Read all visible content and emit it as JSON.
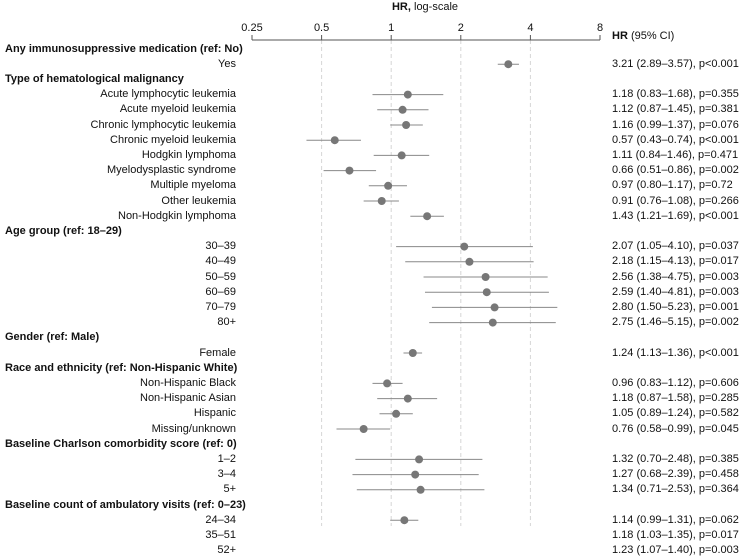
{
  "chart_data": {
    "type": "forest",
    "axis_title_bold": "HR,",
    "axis_title_rest": " log-scale",
    "scale": "log2",
    "xlim": [
      0.25,
      8
    ],
    "ticks": [
      "0.25",
      "0.5",
      "1",
      "2",
      "4",
      "8"
    ],
    "tick_values": [
      0.25,
      0.5,
      1,
      2,
      4,
      8
    ],
    "hr_column_bold": "HR",
    "hr_column_rest": " (95% CI)",
    "rows": [
      {
        "label": "Any immunosuppressive medication (ref: No)",
        "header": true
      },
      {
        "label": "Yes",
        "hr": 3.21,
        "lo": 2.89,
        "hi": 3.57,
        "text": "3.21 (2.89–3.57), p<0.001"
      },
      {
        "label": "Type of hematological malignancy",
        "header": true
      },
      {
        "label": "Acute lymphocytic leukemia",
        "hr": 1.18,
        "lo": 0.83,
        "hi": 1.68,
        "text": "1.18 (0.83–1.68), p=0.355"
      },
      {
        "label": "Acute myeloid leukemia",
        "hr": 1.12,
        "lo": 0.87,
        "hi": 1.45,
        "text": "1.12 (0.87–1.45), p=0.381"
      },
      {
        "label": "Chronic lymphocytic leukemia",
        "hr": 1.16,
        "lo": 0.99,
        "hi": 1.37,
        "text": "1.16 (0.99–1.37), p=0.076"
      },
      {
        "label": "Chronic myeloid leukemia",
        "hr": 0.57,
        "lo": 0.43,
        "hi": 0.74,
        "text": "0.57 (0.43–0.74), p<0.001"
      },
      {
        "label": "Hodgkin lymphoma",
        "hr": 1.11,
        "lo": 0.84,
        "hi": 1.46,
        "text": "1.11 (0.84–1.46), p=0.471"
      },
      {
        "label": "Myelodysplastic syndrome",
        "hr": 0.66,
        "lo": 0.51,
        "hi": 0.86,
        "text": "0.66 (0.51–0.86), p=0.002"
      },
      {
        "label": "Multiple myeloma",
        "hr": 0.97,
        "lo": 0.8,
        "hi": 1.17,
        "text": "0.97 (0.80–1.17), p=0.72"
      },
      {
        "label": "Other leukemia",
        "hr": 0.91,
        "lo": 0.76,
        "hi": 1.08,
        "text": "0.91 (0.76–1.08), p=0.266"
      },
      {
        "label": "Non-Hodgkin lymphoma",
        "hr": 1.43,
        "lo": 1.21,
        "hi": 1.69,
        "text": "1.43 (1.21–1.69), p<0.001"
      },
      {
        "label": "Age group (ref: 18–29)",
        "header": true
      },
      {
        "label": "30–39",
        "hr": 2.07,
        "lo": 1.05,
        "hi": 4.1,
        "text": "2.07 (1.05–4.10), p=0.037"
      },
      {
        "label": "40–49",
        "hr": 2.18,
        "lo": 1.15,
        "hi": 4.13,
        "text": "2.18 (1.15–4.13), p=0.017"
      },
      {
        "label": "50–59",
        "hr": 2.56,
        "lo": 1.38,
        "hi": 4.75,
        "text": "2.56 (1.38–4.75), p=0.003"
      },
      {
        "label": "60–69",
        "hr": 2.59,
        "lo": 1.4,
        "hi": 4.81,
        "text": "2.59 (1.40–4.81), p=0.003"
      },
      {
        "label": "70–79",
        "hr": 2.8,
        "lo": 1.5,
        "hi": 5.23,
        "text": "2.80 (1.50–5.23), p=0.001"
      },
      {
        "label": "80+",
        "hr": 2.75,
        "lo": 1.46,
        "hi": 5.15,
        "text": "2.75 (1.46–5.15), p=0.002"
      },
      {
        "label": "Gender (ref: Male)",
        "header": true
      },
      {
        "label": "Female",
        "hr": 1.24,
        "lo": 1.13,
        "hi": 1.36,
        "text": "1.24 (1.13–1.36), p<0.001"
      },
      {
        "label": "Race and ethnicity (ref: Non-Hispanic White)",
        "header": true
      },
      {
        "label": "Non-Hispanic Black",
        "hr": 0.96,
        "lo": 0.83,
        "hi": 1.12,
        "text": "0.96 (0.83–1.12), p=0.606"
      },
      {
        "label": "Non-Hispanic Asian",
        "hr": 1.18,
        "lo": 0.87,
        "hi": 1.58,
        "text": "1.18 (0.87–1.58), p=0.285"
      },
      {
        "label": "Hispanic",
        "hr": 1.05,
        "lo": 0.89,
        "hi": 1.24,
        "text": "1.05 (0.89–1.24), p=0.582"
      },
      {
        "label": "Missing/unknown",
        "hr": 0.76,
        "lo": 0.58,
        "hi": 0.99,
        "text": "0.76 (0.58–0.99), p=0.045"
      },
      {
        "label": "Baseline Charlson comorbidity score (ref: 0)",
        "header": true
      },
      {
        "label": "1–2",
        "hr": 1.32,
        "lo": 0.7,
        "hi": 2.48,
        "text": "1.32 (0.70–2.48), p=0.385"
      },
      {
        "label": "3–4",
        "hr": 1.27,
        "lo": 0.68,
        "hi": 2.39,
        "text": "1.27 (0.68–2.39), p=0.458"
      },
      {
        "label": "5+",
        "hr": 1.34,
        "lo": 0.71,
        "hi": 2.53,
        "text": "1.34 (0.71–2.53), p=0.364"
      },
      {
        "label": "Baseline count of ambulatory visits (ref: 0–23)",
        "header": true
      },
      {
        "label": "24–34",
        "hr": 1.14,
        "lo": 0.99,
        "hi": 1.31,
        "text": "1.14 (0.99–1.31), p=0.062"
      },
      {
        "label": "35–51",
        "hr": 1.18,
        "lo": 1.03,
        "hi": 1.35,
        "text": "1.18 (1.03–1.35), p=0.017"
      },
      {
        "label": "52+",
        "hr": 1.23,
        "lo": 1.07,
        "hi": 1.4,
        "text": "1.23 (1.07–1.40), p=0.003"
      }
    ],
    "colors": {
      "point": "#777777",
      "ci": "#888888",
      "gridline": "#d6d6d6",
      "axis": "#555555"
    }
  }
}
